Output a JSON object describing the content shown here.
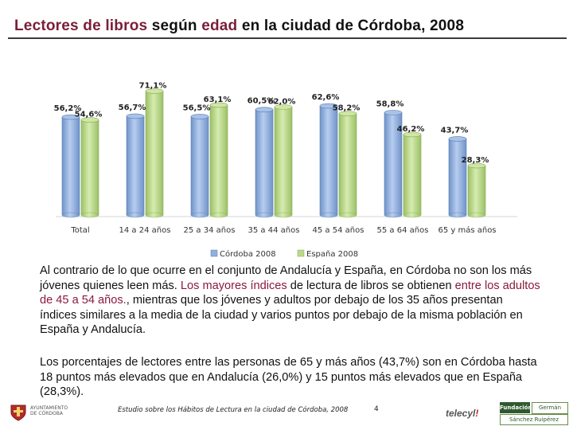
{
  "title": {
    "part1": "Lectores de libros",
    "part2": " según ",
    "part3": "edad",
    "part4": " en la ciudad de Córdoba, 2008"
  },
  "chart_data": {
    "type": "bar",
    "categories": [
      "Total",
      "14 a 24 años",
      "25 a 34 años",
      "35 a 44 años",
      "45 a 54 años",
      "55 a 64 años",
      "65 y más años"
    ],
    "series": [
      {
        "name": "Córdoba 2008",
        "values": [
          56.2,
          56.7,
          56.5,
          60.5,
          62.6,
          58.8,
          43.7
        ],
        "color": "#8fb0dc"
      },
      {
        "name": "España 2008",
        "values": [
          54.6,
          71.1,
          63.1,
          62.0,
          58.2,
          46.2,
          28.3
        ],
        "color": "#bcd88a"
      }
    ],
    "data_labels": [
      [
        "56,2%",
        "56,7%",
        "56,5%",
        "60,5%",
        "62,6%",
        "58,8%",
        "43,7%"
      ],
      [
        "54,6%",
        "71,1%",
        "63,1%",
        "62,0%",
        "58,2%",
        "46,2%",
        "28,3%"
      ]
    ],
    "ylim": [
      0,
      80
    ],
    "legend_position": "bottom",
    "grid": false
  },
  "paragraphs": {
    "p1": {
      "a": "Al contrario de lo que ocurre en el conjunto de Andalucía y España, en Córdoba no son los más jóvenes quienes leen más. ",
      "b": "Los mayores índices",
      "c": " de lectura  de libros se obtienen ",
      "d": "entre los adultos de 45 a 54 años.",
      "e": ", mientras que los jóvenes y adultos por debajo de los 35 años presentan índices similares a la media de la ciudad y varios puntos por debajo de la misma población en España y Andalucía."
    },
    "p2": "Los porcentajes de lectores entre las personas de 65 y más años (43,7%) son en Córdoba hasta 18 puntos más elevados que en Andalucía (26,0%) y 15 puntos más elevados que en España (28,3%)."
  },
  "footer": {
    "ayto_line1": "AYUNTAMIENTO",
    "ayto_line2": "DE CÓRDOBA",
    "note": "Estudio sobre los Hábitos de Lectura en la ciudad de Córdoba, 2008",
    "page": "4",
    "telecyl": "telecyl",
    "fundacion": "Fundación",
    "german": "Germán",
    "sanchez": "Sánchez Ruipérez"
  },
  "colors": {
    "accent": "#7a1e38",
    "cordoba": "#8fb0dc",
    "espana": "#bcd88a"
  }
}
